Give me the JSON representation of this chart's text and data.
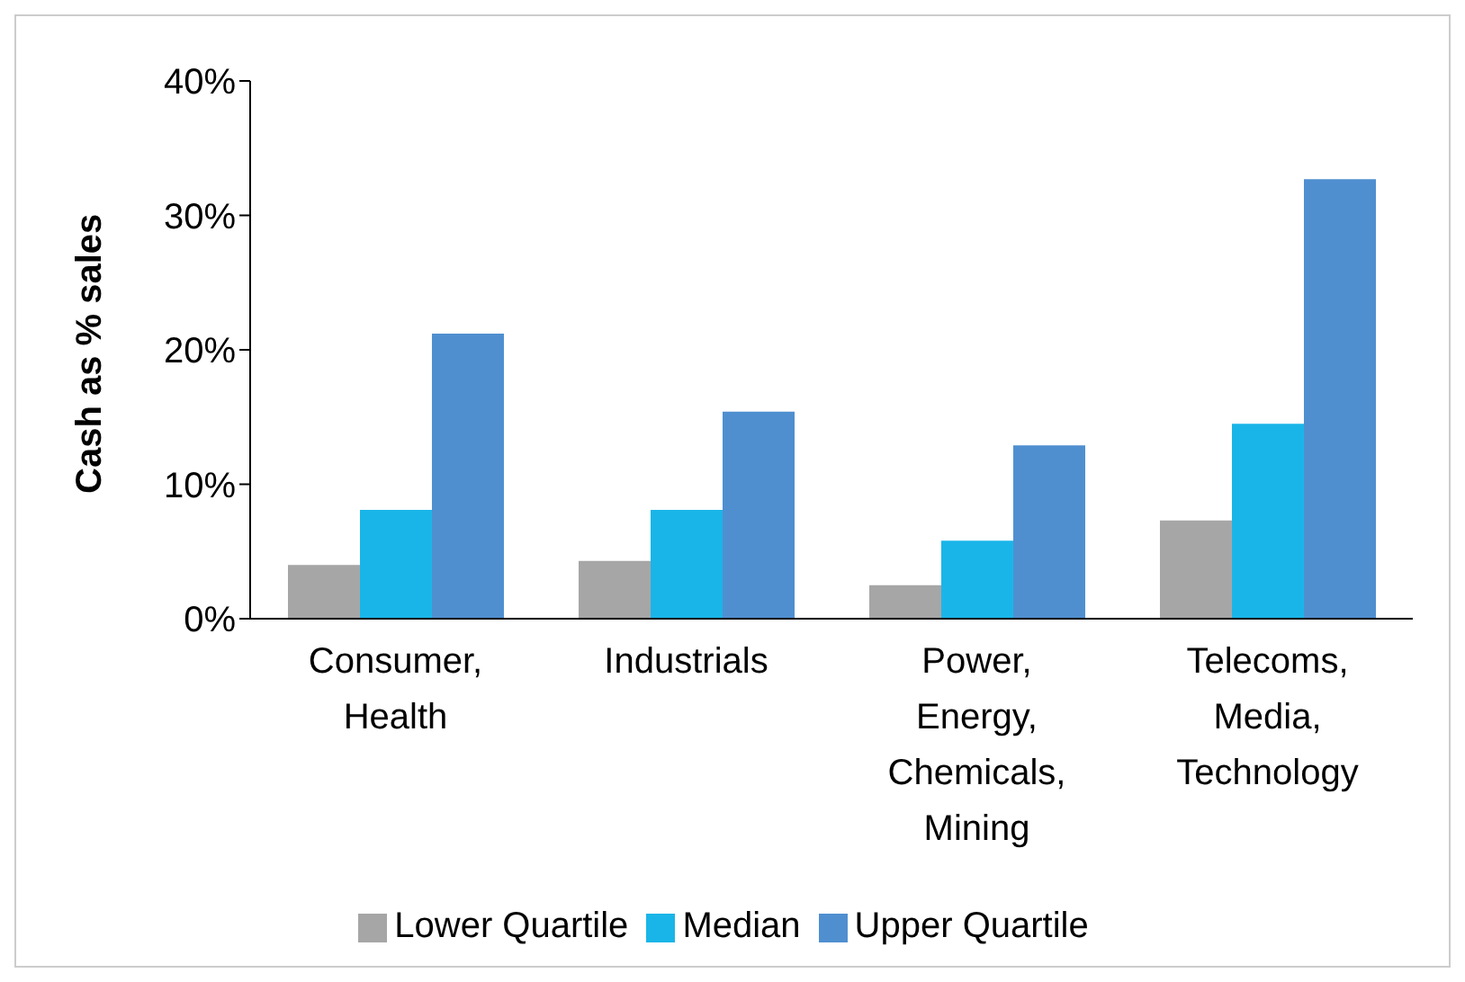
{
  "chart_data": {
    "type": "bar",
    "ylabel": "Cash as % sales",
    "categories": [
      "Consumer, Health",
      "Industrials",
      "Power, Energy, Chemicals, Mining",
      "Telecoms, Media, Technology"
    ],
    "series": [
      {
        "name": "Lower Quartile",
        "color": "#a6a6a6",
        "values": [
          4.0,
          4.3,
          2.5,
          7.3
        ]
      },
      {
        "name": "Median",
        "color": "#1ab5e8",
        "values": [
          8.1,
          8.1,
          5.8,
          14.5
        ]
      },
      {
        "name": "Upper Quartile",
        "color": "#4f8fd0",
        "values": [
          21.2,
          15.4,
          12.9,
          32.7
        ]
      }
    ],
    "ylim": [
      0,
      40
    ],
    "yticks": [
      {
        "value": 0,
        "label": "0%"
      },
      {
        "value": 10,
        "label": "10%"
      },
      {
        "value": 20,
        "label": "20%"
      },
      {
        "value": 30,
        "label": "30%"
      },
      {
        "value": 40,
        "label": "40%"
      }
    ],
    "grid": false,
    "legend": "bottom"
  }
}
